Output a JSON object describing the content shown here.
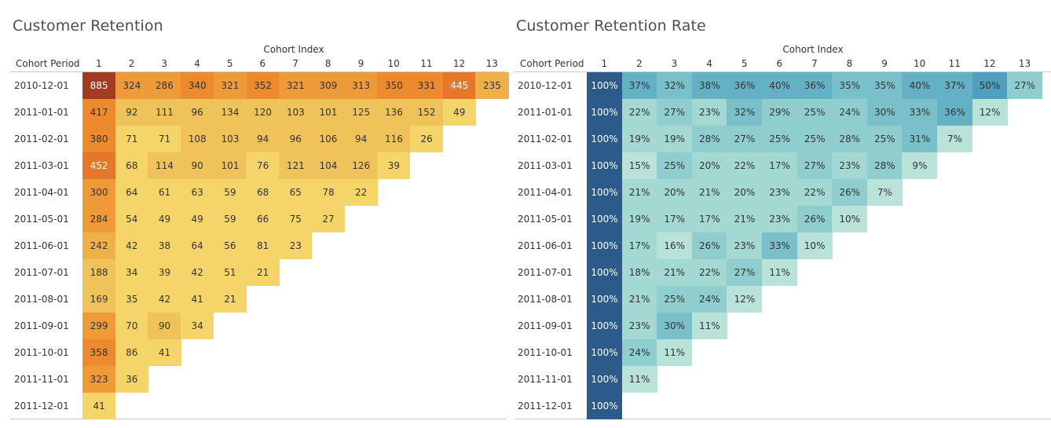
{
  "colors": {
    "retention_scale": [
      "#f5d569",
      "#f0c35a",
      "#efb04a",
      "#ee9a39",
      "#ec8a2d",
      "#e5772a",
      "#a23b1f"
    ],
    "rate_scale": [
      "#b9e3d9",
      "#a3d8d3",
      "#8fcdcf",
      "#79c0cb",
      "#64b0c5",
      "#4f9fbe",
      "#2c5b8b"
    ],
    "dark_text": "#333333",
    "light_text": "#ffffff"
  },
  "chart_data": [
    {
      "type": "heatmap",
      "title": "Customer Retention",
      "xlabel": "Cohort Index",
      "row_header": "Cohort Period",
      "x": [
        "1",
        "2",
        "3",
        "4",
        "5",
        "6",
        "7",
        "8",
        "9",
        "10",
        "11",
        "12",
        "13"
      ],
      "y": [
        "2010-12-01",
        "2011-01-01",
        "2011-02-01",
        "2011-03-01",
        "2011-04-01",
        "2011-05-01",
        "2011-06-01",
        "2011-07-01",
        "2011-08-01",
        "2011-09-01",
        "2011-10-01",
        "2011-11-01",
        "2011-12-01"
      ],
      "values": [
        [
          885,
          324,
          286,
          340,
          321,
          352,
          321,
          309,
          313,
          350,
          331,
          445,
          235
        ],
        [
          417,
          92,
          111,
          96,
          134,
          120,
          103,
          101,
          125,
          136,
          152,
          49
        ],
        [
          380,
          71,
          71,
          108,
          103,
          94,
          96,
          106,
          94,
          116,
          26
        ],
        [
          452,
          68,
          114,
          90,
          101,
          76,
          121,
          104,
          126,
          39
        ],
        [
          300,
          64,
          61,
          63,
          59,
          68,
          65,
          78,
          22
        ],
        [
          284,
          54,
          49,
          49,
          59,
          66,
          75,
          27
        ],
        [
          242,
          42,
          38,
          64,
          56,
          81,
          23
        ],
        [
          188,
          34,
          39,
          42,
          51,
          21
        ],
        [
          169,
          35,
          42,
          41,
          21
        ],
        [
          299,
          70,
          90,
          34
        ],
        [
          358,
          86,
          41
        ],
        [
          323,
          36
        ],
        [
          41
        ]
      ],
      "labels": [
        [
          "885",
          "324",
          "286",
          "340",
          "321",
          "352",
          "321",
          "309",
          "313",
          "350",
          "331",
          "445",
          "235"
        ],
        [
          "417",
          "92",
          "111",
          "96",
          "134",
          "120",
          "103",
          "101",
          "125",
          "136",
          "152",
          "49"
        ],
        [
          "380",
          "71",
          "71",
          "108",
          "103",
          "94",
          "96",
          "106",
          "94",
          "116",
          "26"
        ],
        [
          "452",
          "68",
          "114",
          "90",
          "101",
          "76",
          "121",
          "104",
          "126",
          "39"
        ],
        [
          "300",
          "64",
          "61",
          "63",
          "59",
          "68",
          "65",
          "78",
          "22"
        ],
        [
          "284",
          "54",
          "49",
          "49",
          "59",
          "66",
          "75",
          "27"
        ],
        [
          "242",
          "42",
          "38",
          "64",
          "56",
          "81",
          "23"
        ],
        [
          "188",
          "34",
          "39",
          "42",
          "51",
          "21"
        ],
        [
          "169",
          "35",
          "42",
          "41",
          "21"
        ],
        [
          "299",
          "70",
          "90",
          "34"
        ],
        [
          "358",
          "86",
          "41"
        ],
        [
          "323",
          "36"
        ],
        [
          "41"
        ]
      ]
    },
    {
      "type": "heatmap",
      "title": "Customer Retention Rate",
      "xlabel": "Cohort Index",
      "row_header": "Cohort Period",
      "x": [
        "1",
        "2",
        "3",
        "4",
        "5",
        "6",
        "7",
        "8",
        "9",
        "10",
        "11",
        "12",
        "13"
      ],
      "y": [
        "2010-12-01",
        "2011-01-01",
        "2011-02-01",
        "2011-03-01",
        "2011-04-01",
        "2011-05-01",
        "2011-06-01",
        "2011-07-01",
        "2011-08-01",
        "2011-09-01",
        "2011-10-01",
        "2011-11-01",
        "2011-12-01"
      ],
      "values": [
        [
          100,
          37,
          32,
          38,
          36,
          40,
          36,
          35,
          35,
          40,
          37,
          50,
          27
        ],
        [
          100,
          22,
          27,
          23,
          32,
          29,
          25,
          24,
          30,
          33,
          36,
          12
        ],
        [
          100,
          19,
          19,
          28,
          27,
          25,
          25,
          28,
          25,
          31,
          7
        ],
        [
          100,
          15,
          25,
          20,
          22,
          17,
          27,
          23,
          28,
          9
        ],
        [
          100,
          21,
          20,
          21,
          20,
          23,
          22,
          26,
          7
        ],
        [
          100,
          19,
          17,
          17,
          21,
          23,
          26,
          10
        ],
        [
          100,
          17,
          16,
          26,
          23,
          33,
          10
        ],
        [
          100,
          18,
          21,
          22,
          27,
          11
        ],
        [
          100,
          21,
          25,
          24,
          12
        ],
        [
          100,
          23,
          30,
          11
        ],
        [
          100,
          24,
          11
        ],
        [
          100,
          11
        ],
        [
          100
        ]
      ],
      "labels": [
        [
          "100%",
          "37%",
          "32%",
          "38%",
          "36%",
          "40%",
          "36%",
          "35%",
          "35%",
          "40%",
          "37%",
          "50%",
          "27%"
        ],
        [
          "100%",
          "22%",
          "27%",
          "23%",
          "32%",
          "29%",
          "25%",
          "24%",
          "30%",
          "33%",
          "36%",
          "12%"
        ],
        [
          "100%",
          "19%",
          "19%",
          "28%",
          "27%",
          "25%",
          "25%",
          "28%",
          "25%",
          "31%",
          "7%"
        ],
        [
          "100%",
          "15%",
          "25%",
          "20%",
          "22%",
          "17%",
          "27%",
          "23%",
          "28%",
          "9%"
        ],
        [
          "100%",
          "21%",
          "20%",
          "21%",
          "20%",
          "23%",
          "22%",
          "26%",
          "7%"
        ],
        [
          "100%",
          "19%",
          "17%",
          "17%",
          "21%",
          "23%",
          "26%",
          "10%"
        ],
        [
          "100%",
          "17%",
          "16%",
          "26%",
          "23%",
          "33%",
          "10%"
        ],
        [
          "100%",
          "18%",
          "21%",
          "22%",
          "27%",
          "11%"
        ],
        [
          "100%",
          "21%",
          "25%",
          "24%",
          "12%"
        ],
        [
          "100%",
          "23%",
          "30%",
          "11%"
        ],
        [
          "100%",
          "24%",
          "11%"
        ],
        [
          "100%",
          "11%"
        ],
        [
          "100%"
        ]
      ]
    }
  ]
}
